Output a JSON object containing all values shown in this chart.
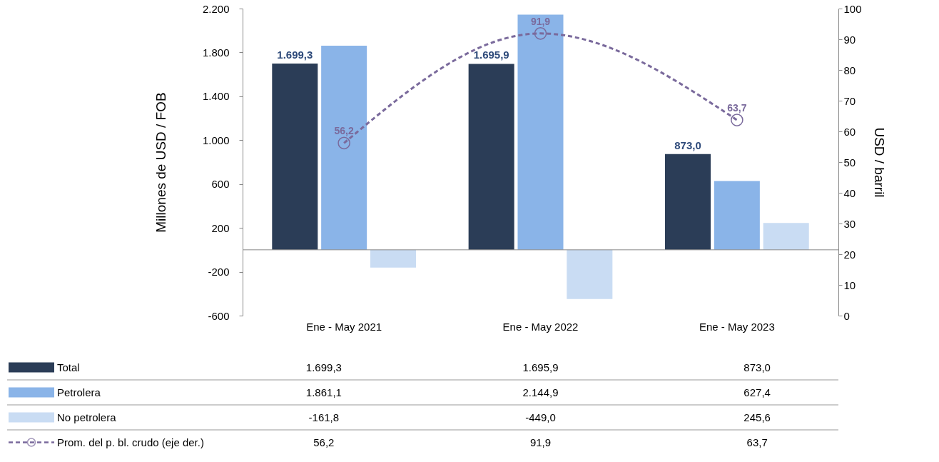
{
  "chart_data": {
    "type": "bar",
    "categories": [
      "Ene - May 2021",
      "Ene - May 2022",
      "Ene - May 2023"
    ],
    "series": [
      {
        "name": "Total",
        "color": "#2b3d57",
        "values": [
          1699.3,
          1695.9,
          873.0
        ],
        "value_labels": [
          "1.699,3",
          "1.695,9",
          "873,0"
        ]
      },
      {
        "name": "Petrolera",
        "color": "#8ab4e8",
        "values": [
          1861.1,
          2144.9,
          627.4
        ],
        "value_labels": [
          "1.861,1",
          "2.144,9",
          "627,4"
        ]
      },
      {
        "name": "No petrolera",
        "color": "#c9dcf3",
        "values": [
          -161.8,
          -449.0,
          245.6
        ],
        "value_labels": [
          "-161,8",
          "-449,0",
          "245,6"
        ]
      },
      {
        "name": "Prom. del p. bl. crudo (eje der.)",
        "type": "line",
        "axis": "y2",
        "color": "#7a6a9c",
        "values": [
          56.2,
          91.9,
          63.7
        ],
        "value_labels": [
          "56,2",
          "91,9",
          "63,7"
        ]
      }
    ],
    "ylabel": "Millones de USD / FOB",
    "y2label": "USD / barril",
    "ylim": [
      -600,
      2200
    ],
    "yticks": [
      -600,
      -200,
      200,
      600,
      {
        "value": 1000,
        "label": "1.000"
      },
      {
        "value": 1400,
        "label": "1.400"
      },
      {
        "value": 1800,
        "label": "1.800"
      },
      {
        "value": 2200,
        "label": "2.200"
      }
    ],
    "y2lim": [
      0,
      100
    ],
    "y2ticks": [
      0,
      10,
      20,
      30,
      40,
      50,
      60,
      70,
      80,
      90,
      100
    ],
    "marker": "circle",
    "line_style": "dashed",
    "legend": "bottom"
  }
}
